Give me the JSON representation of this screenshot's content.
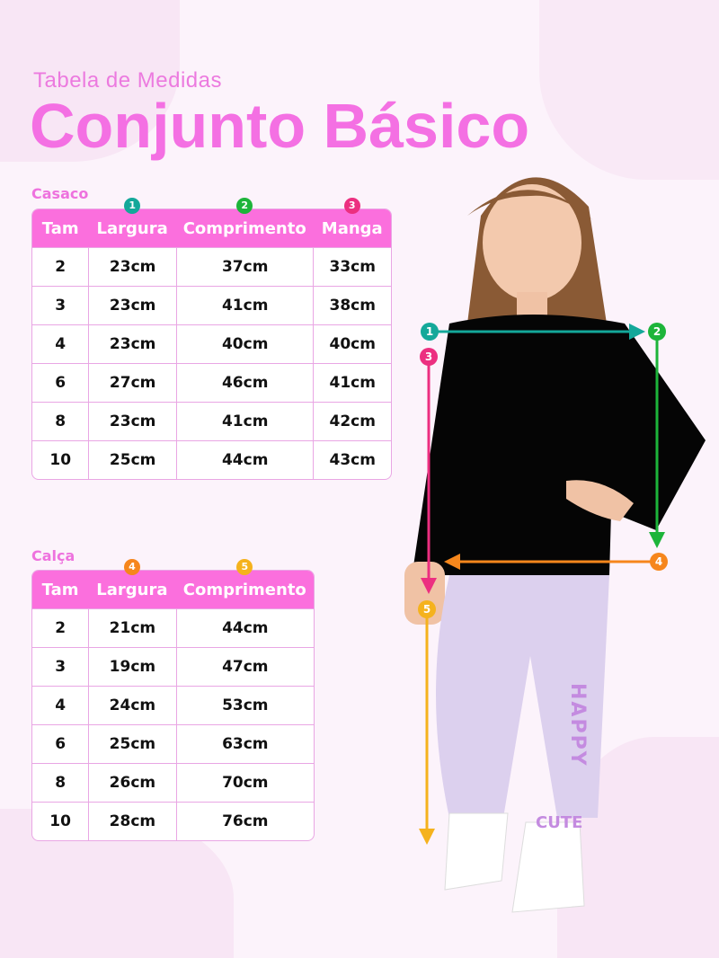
{
  "header": {
    "subtitle": "Tabela de Medidas",
    "title": "Conjunto Básico"
  },
  "colors": {
    "pink": "#fb6fdd",
    "teal": "#14a89a",
    "green": "#1db43a",
    "magenta": "#ec2f80",
    "orange": "#f6861c",
    "yellow": "#f5b21d"
  },
  "casaco": {
    "label": "Casaco",
    "columns": [
      {
        "label": "Tam"
      },
      {
        "label": "Largura",
        "badge": "1"
      },
      {
        "label": "Comprimento",
        "badge": "2"
      },
      {
        "label": "Manga",
        "badge": "3"
      }
    ],
    "rows": [
      [
        "2",
        "23cm",
        "37cm",
        "33cm"
      ],
      [
        "3",
        "23cm",
        "41cm",
        "38cm"
      ],
      [
        "4",
        "23cm",
        "40cm",
        "40cm"
      ],
      [
        "6",
        "27cm",
        "46cm",
        "41cm"
      ],
      [
        "8",
        "23cm",
        "41cm",
        "42cm"
      ],
      [
        "10",
        "25cm",
        "44cm",
        "43cm"
      ]
    ]
  },
  "calca": {
    "label": "Calça",
    "columns": [
      {
        "label": "Tam"
      },
      {
        "label": "Largura",
        "badge": "4"
      },
      {
        "label": "Comprimento",
        "badge": "5"
      }
    ],
    "rows": [
      [
        "2",
        "21cm",
        "44cm"
      ],
      [
        "3",
        "19cm",
        "47cm"
      ],
      [
        "4",
        "24cm",
        "53cm"
      ],
      [
        "6",
        "25cm",
        "63cm"
      ],
      [
        "8",
        "26cm",
        "70cm"
      ],
      [
        "10",
        "28cm",
        "76cm"
      ]
    ]
  },
  "markers": [
    "1",
    "2",
    "3",
    "4",
    "5"
  ],
  "garment_print": {
    "happy": "HAPPY",
    "cute": "CUTE"
  }
}
